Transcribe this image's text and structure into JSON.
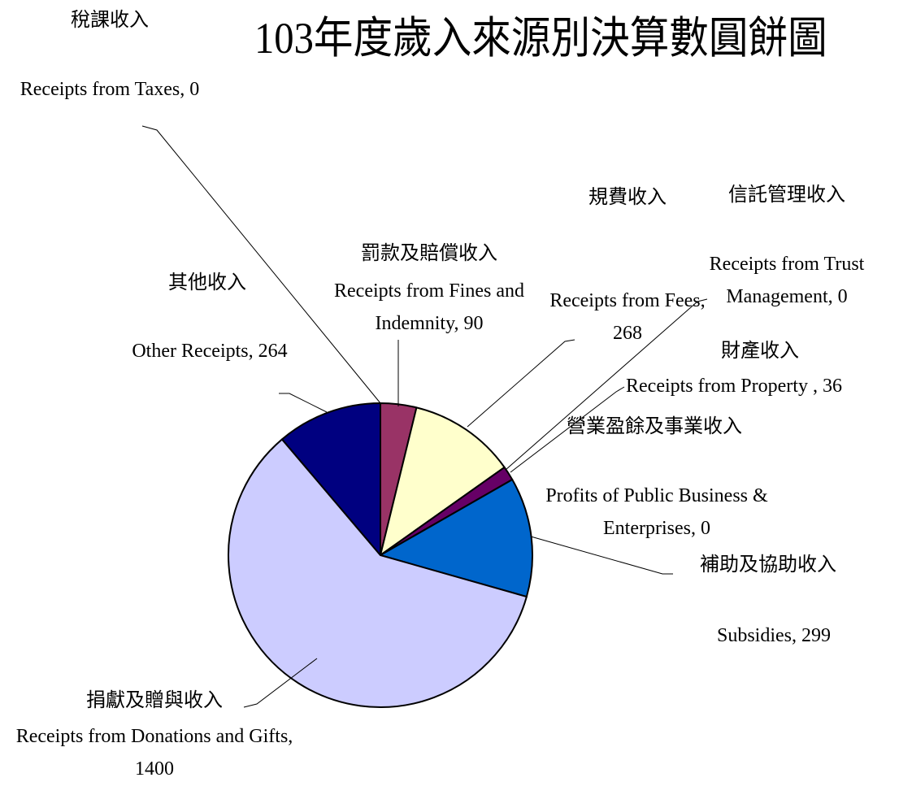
{
  "chart_data": {
    "type": "pie",
    "title": "103年度歲入來源別決算數圓餅圖",
    "chinese_labels": [
      "稅課收入",
      "罰款及賠償收入",
      "規費收入",
      "信託管理收入",
      "財產收入",
      "營業盈餘及事業收入",
      "補助及協助收入",
      "捐獻及贈與收入",
      "其他收入"
    ],
    "value_labels": [
      "Receipts from Taxes, 0",
      "Receipts from Fines and Indemnity, 90",
      "Receipts from Fees, 268",
      "Receipts from Trust Management, 0",
      "Receipts from Property , 36",
      "Profits of Public Business & Enterprises, 0",
      "Subsidies, 299",
      "Receipts from Donations and Gifts, 1400",
      "Other Receipts, 264"
    ],
    "values": [
      0,
      90,
      268,
      0,
      36,
      0,
      299,
      1400,
      264
    ],
    "colors": [
      "#993366",
      "#993366",
      "#ffffcc",
      "#ccffff",
      "#660066",
      "#ff8080",
      "#0066cc",
      "#ccccff",
      "#000080"
    ]
  }
}
